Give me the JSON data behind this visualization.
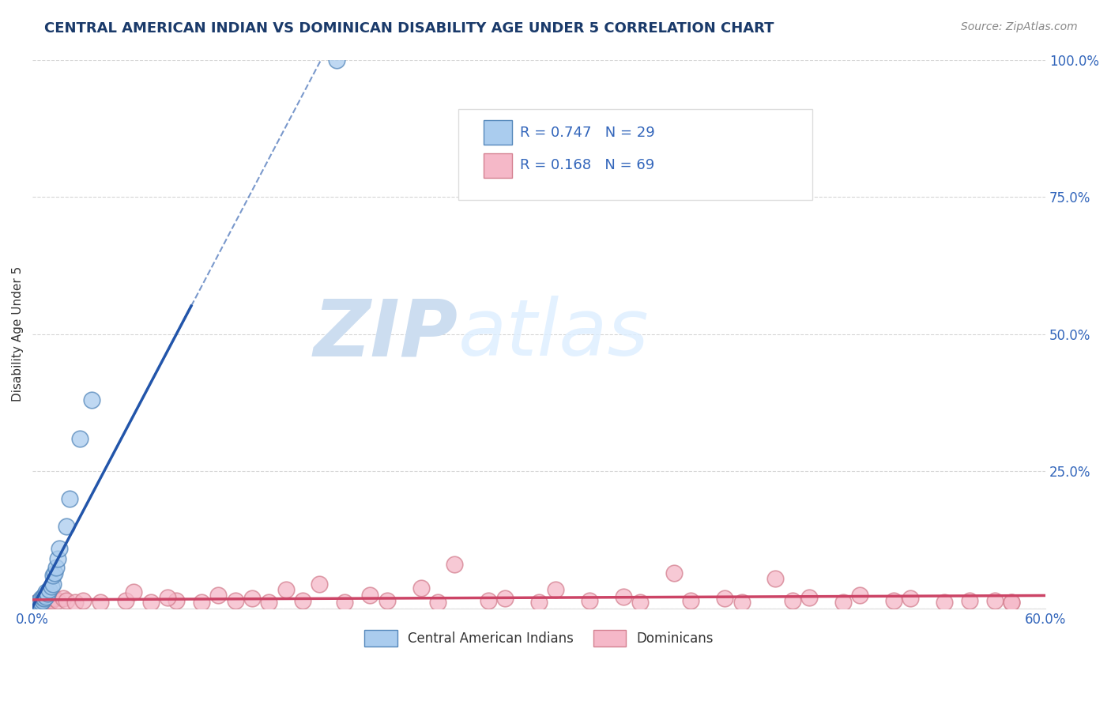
{
  "title": "CENTRAL AMERICAN INDIAN VS DOMINICAN DISABILITY AGE UNDER 5 CORRELATION CHART",
  "source": "Source: ZipAtlas.com",
  "ylabel": "Disability Age Under 5",
  "blue_R": 0.747,
  "blue_N": 29,
  "pink_R": 0.168,
  "pink_N": 69,
  "blue_fill": "#aaccee",
  "blue_edge": "#5588bb",
  "pink_fill": "#f5b8c8",
  "pink_edge": "#d48090",
  "blue_trend_color": "#2255aa",
  "pink_trend_color": "#cc4466",
  "watermark_color": "#ccddf0",
  "title_color": "#1a3a6a",
  "axis_tick_color": "#3366bb",
  "ylabel_color": "#333333",
  "source_color": "#888888",
  "grid_color": "#cccccc",
  "bg_color": "#ffffff",
  "legend_label_blue": "Central American Indians",
  "legend_label_pink": "Dominicans",
  "blue_scatter_x": [
    0.001,
    0.002,
    0.002,
    0.003,
    0.003,
    0.004,
    0.004,
    0.005,
    0.005,
    0.006,
    0.006,
    0.007,
    0.007,
    0.008,
    0.008,
    0.009,
    0.01,
    0.011,
    0.012,
    0.012,
    0.013,
    0.014,
    0.015,
    0.016,
    0.02,
    0.022,
    0.028,
    0.035,
    0.18
  ],
  "blue_scatter_y": [
    0.005,
    0.005,
    0.008,
    0.008,
    0.012,
    0.01,
    0.015,
    0.012,
    0.018,
    0.015,
    0.02,
    0.018,
    0.025,
    0.022,
    0.03,
    0.028,
    0.035,
    0.04,
    0.045,
    0.06,
    0.065,
    0.075,
    0.09,
    0.11,
    0.15,
    0.2,
    0.31,
    0.38,
    1.0
  ],
  "pink_scatter_x": [
    0.001,
    0.001,
    0.002,
    0.002,
    0.003,
    0.003,
    0.004,
    0.004,
    0.005,
    0.005,
    0.006,
    0.006,
    0.007,
    0.007,
    0.008,
    0.008,
    0.009,
    0.01,
    0.011,
    0.012,
    0.013,
    0.015,
    0.018,
    0.02,
    0.025,
    0.03,
    0.04,
    0.055,
    0.07,
    0.085,
    0.1,
    0.12,
    0.14,
    0.16,
    0.185,
    0.21,
    0.24,
    0.27,
    0.3,
    0.33,
    0.36,
    0.39,
    0.42,
    0.45,
    0.48,
    0.51,
    0.54,
    0.57,
    0.08,
    0.13,
    0.2,
    0.28,
    0.35,
    0.41,
    0.46,
    0.52,
    0.17,
    0.23,
    0.31,
    0.38,
    0.44,
    0.49,
    0.555,
    0.58,
    0.06,
    0.11,
    0.15,
    0.25,
    0.58
  ],
  "pink_scatter_y": [
    0.005,
    0.008,
    0.005,
    0.01,
    0.008,
    0.012,
    0.008,
    0.015,
    0.01,
    0.015,
    0.01,
    0.018,
    0.012,
    0.018,
    0.012,
    0.02,
    0.015,
    0.018,
    0.015,
    0.02,
    0.018,
    0.015,
    0.018,
    0.015,
    0.012,
    0.015,
    0.012,
    0.015,
    0.012,
    0.015,
    0.012,
    0.015,
    0.012,
    0.015,
    0.012,
    0.015,
    0.012,
    0.015,
    0.012,
    0.015,
    0.012,
    0.015,
    0.012,
    0.015,
    0.012,
    0.015,
    0.012,
    0.015,
    0.02,
    0.018,
    0.025,
    0.018,
    0.022,
    0.018,
    0.02,
    0.018,
    0.045,
    0.038,
    0.035,
    0.065,
    0.055,
    0.025,
    0.015,
    0.012,
    0.03,
    0.025,
    0.035,
    0.08,
    0.012
  ]
}
